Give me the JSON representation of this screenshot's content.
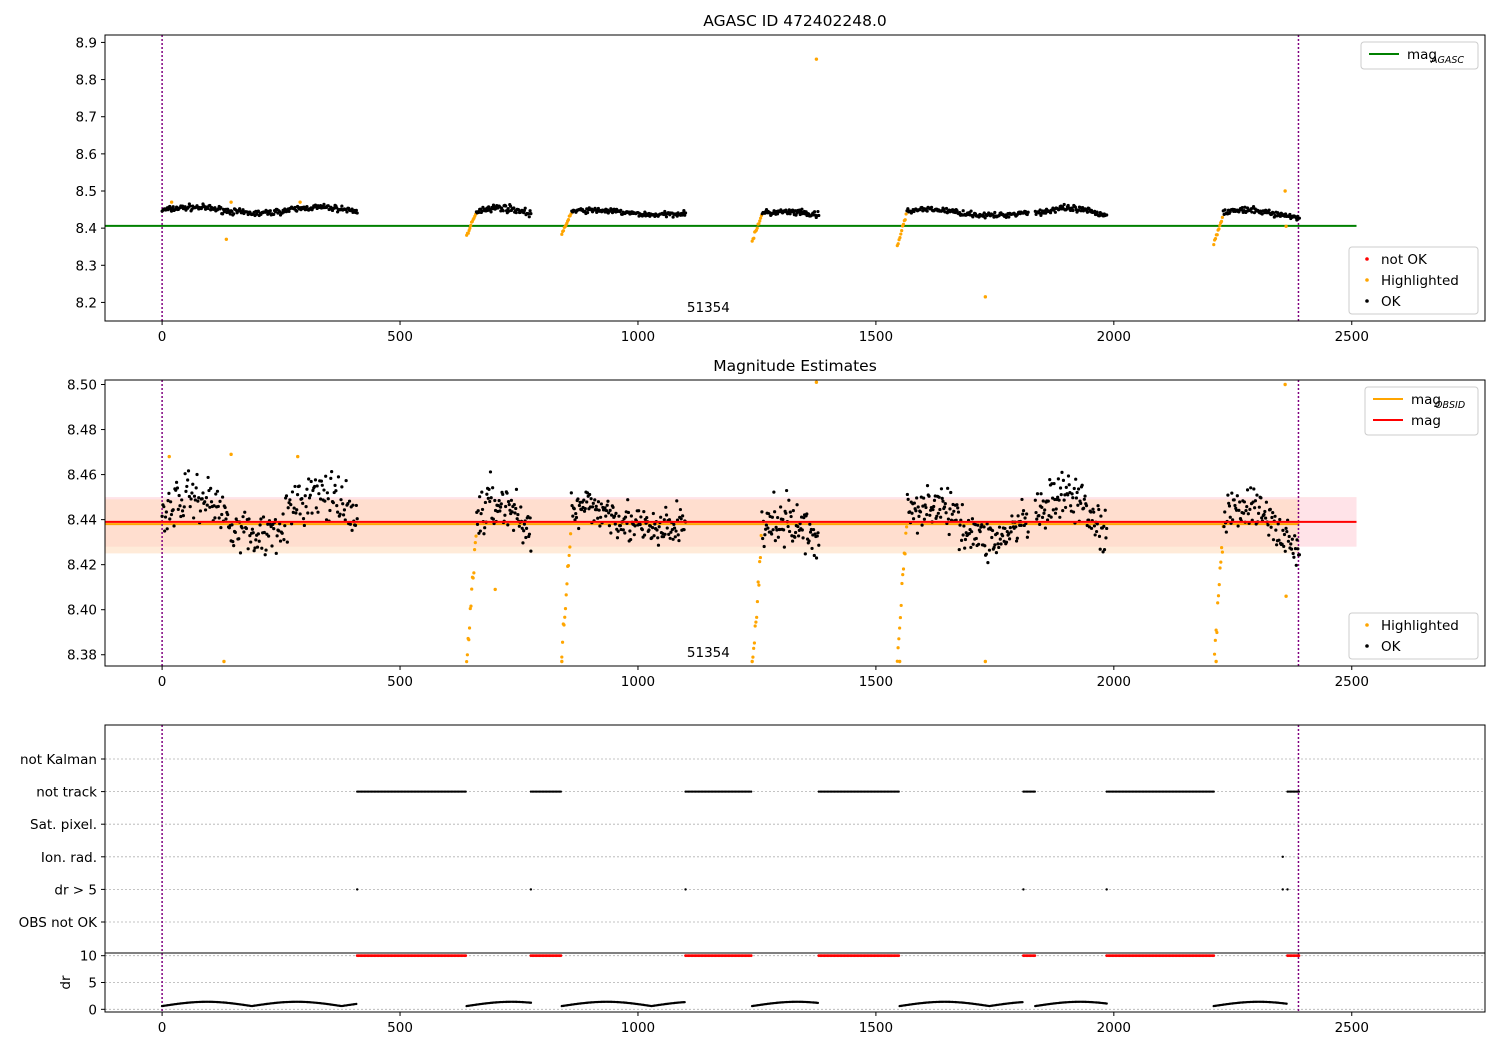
{
  "colors": {
    "ok": "#000000",
    "highlighted": "#ffa500",
    "not_ok": "#ff0000",
    "agasc_line": "#008000",
    "obsid_line": "#ffa500",
    "mag_line": "#ff0000",
    "band_mag": "#ffc0cb",
    "band_obsid": "#ffdab9",
    "boundary": "#800080",
    "grid": "#b0b0b0"
  },
  "chart_data": [
    {
      "id": "agasc",
      "type": "scatter",
      "title": "AGASC ID 472402248.0",
      "annotation": "51354",
      "annotation_x": 1190,
      "xlim": [
        -120,
        2780
      ],
      "ylim": [
        8.15,
        8.92
      ],
      "xticks": [
        0,
        500,
        1000,
        1500,
        2000,
        2500
      ],
      "xtick_labels": [
        "0",
        "500",
        "1000",
        "1500",
        "2000",
        "2500"
      ],
      "yticks": [
        8.2,
        8.3,
        8.4,
        8.5,
        8.6,
        8.7,
        8.8,
        8.9
      ],
      "ytick_labels": [
        "8.2",
        "8.3",
        "8.4",
        "8.5",
        "8.6",
        "8.7",
        "8.8",
        "8.9"
      ],
      "boundaries": [
        0,
        2388
      ],
      "mag_agasc": 8.406,
      "legend_top": [
        {
          "label": "mag",
          "sub": "AGASC",
          "kind": "line",
          "color_key": "agasc_line"
        }
      ],
      "legend_bottom": [
        {
          "label": "not OK",
          "kind": "dot",
          "color_key": "not_ok"
        },
        {
          "label": "Highlighted",
          "kind": "dot",
          "color_key": "highlighted"
        },
        {
          "label": "OK",
          "kind": "dot",
          "color_key": "ok"
        }
      ],
      "segments": [
        {
          "x0": 0,
          "x1": 410,
          "base": 8.448,
          "wave": 0.008,
          "noise": 0.007,
          "n": 230
        },
        {
          "x0": 640,
          "x1": 775,
          "base": 8.44,
          "wave": 0.015,
          "noise": 0.008,
          "n": 80,
          "dip": 0.06
        },
        {
          "x0": 840,
          "x1": 1100,
          "base": 8.442,
          "wave": 0.006,
          "noise": 0.006,
          "n": 150,
          "dip": 0.06
        },
        {
          "x0": 1240,
          "x1": 1380,
          "base": 8.435,
          "wave": 0.008,
          "noise": 0.008,
          "n": 80,
          "dip": 0.07
        },
        {
          "x0": 1545,
          "x1": 1820,
          "base": 8.442,
          "wave": 0.008,
          "noise": 0.006,
          "n": 150,
          "dip": 0.09
        },
        {
          "x0": 1835,
          "x1": 1985,
          "base": 8.44,
          "wave": 0.012,
          "noise": 0.008,
          "n": 90
        },
        {
          "x0": 2210,
          "x1": 2390,
          "base": 8.438,
          "wave": 0.01,
          "noise": 0.007,
          "n": 100,
          "dip": 0.08
        }
      ],
      "outliers": [
        {
          "x": 135,
          "y": 8.37
        },
        {
          "x": 145,
          "y": 8.47
        },
        {
          "x": 290,
          "y": 8.47
        },
        {
          "x": 20,
          "y": 8.47
        },
        {
          "x": 1375,
          "y": 8.855
        },
        {
          "x": 1730,
          "y": 8.215
        },
        {
          "x": 2360,
          "y": 8.5
        },
        {
          "x": 2362,
          "y": 8.405
        }
      ]
    },
    {
      "id": "mag_estimates",
      "type": "scatter",
      "title": "Magnitude Estimates",
      "annotation": "51354",
      "annotation_x": 1190,
      "xlim": [
        -120,
        2780
      ],
      "ylim": [
        8.375,
        8.502
      ],
      "xticks": [
        0,
        500,
        1000,
        1500,
        2000,
        2500
      ],
      "xtick_labels": [
        "0",
        "500",
        "1000",
        "1500",
        "2000",
        "2500"
      ],
      "yticks": [
        8.38,
        8.4,
        8.42,
        8.44,
        8.46,
        8.48,
        8.5
      ],
      "ytick_labels": [
        "8.38",
        "8.40",
        "8.42",
        "8.44",
        "8.46",
        "8.48",
        "8.50"
      ],
      "boundaries": [
        0,
        2388
      ],
      "mag": 8.439,
      "mag_obsid": 8.438,
      "band_mag": [
        8.428,
        8.45
      ],
      "band_obsid": [
        8.425,
        8.449
      ],
      "band_x": [
        -120,
        2510
      ],
      "legend_top": [
        {
          "label": "mag",
          "sub": "OBSID",
          "kind": "line",
          "color_key": "obsid_line"
        },
        {
          "label": "mag",
          "sub": "",
          "kind": "line",
          "color_key": "mag_line"
        }
      ],
      "legend_bottom": [
        {
          "label": "Highlighted",
          "kind": "dot",
          "color_key": "highlighted"
        },
        {
          "label": "OK",
          "kind": "dot",
          "color_key": "ok"
        }
      ],
      "segments": [
        {
          "x0": 0,
          "x1": 410,
          "base": 8.442,
          "wave": 0.009,
          "noise": 0.009,
          "n": 230
        },
        {
          "x0": 640,
          "x1": 775,
          "base": 8.435,
          "wave": 0.012,
          "noise": 0.01,
          "n": 90,
          "dip": 0.06
        },
        {
          "x0": 840,
          "x1": 1100,
          "base": 8.44,
          "wave": 0.005,
          "noise": 0.008,
          "n": 170,
          "dip": 0.06
        },
        {
          "x0": 1240,
          "x1": 1380,
          "base": 8.432,
          "wave": 0.007,
          "noise": 0.009,
          "n": 90,
          "dip": 0.06
        },
        {
          "x0": 1545,
          "x1": 1820,
          "base": 8.439,
          "wave": 0.008,
          "noise": 0.008,
          "n": 170,
          "dip": 0.06
        },
        {
          "x0": 1835,
          "x1": 1985,
          "base": 8.438,
          "wave": 0.012,
          "noise": 0.009,
          "n": 100
        },
        {
          "x0": 2210,
          "x1": 2390,
          "base": 8.436,
          "wave": 0.01,
          "noise": 0.008,
          "n": 110,
          "dip": 0.06
        }
      ],
      "outliers": [
        {
          "x": 15,
          "y": 8.468
        },
        {
          "x": 145,
          "y": 8.469
        },
        {
          "x": 285,
          "y": 8.468
        },
        {
          "x": 130,
          "y": 8.377
        },
        {
          "x": 1375,
          "y": 8.501
        },
        {
          "x": 1730,
          "y": 8.377
        },
        {
          "x": 2360,
          "y": 8.5
        },
        {
          "x": 2362,
          "y": 8.406
        },
        {
          "x": 700,
          "y": 8.409
        },
        {
          "x": 840,
          "y": 8.377
        },
        {
          "x": 1240,
          "y": 8.377
        },
        {
          "x": 1550,
          "y": 8.377
        },
        {
          "x": 2215,
          "y": 8.377
        }
      ]
    },
    {
      "id": "flags",
      "type": "scatter",
      "xlim": [
        -120,
        2780
      ],
      "boundaries": [
        0,
        2388
      ],
      "categories": [
        "not Kalman",
        "not track",
        "Sat. pixel.",
        "Ion. rad.",
        "dr > 5",
        "OBS not OK"
      ],
      "not_track_ranges": [
        [
          410,
          640
        ],
        [
          775,
          840
        ],
        [
          1100,
          1240
        ],
        [
          1380,
          1550
        ],
        [
          1810,
          1835
        ],
        [
          1985,
          2210
        ],
        [
          2365,
          2390
        ]
      ],
      "ion_rad_points": [
        2355
      ],
      "dr5_points": [
        410,
        775,
        1100,
        1810,
        1985,
        2355,
        2365
      ]
    },
    {
      "id": "dr",
      "type": "scatter",
      "ylabel": "dr",
      "xlim": [
        -120,
        2780
      ],
      "ylim": [
        -0.5,
        10.5
      ],
      "xticks": [
        0,
        500,
        1000,
        1500,
        2000,
        2500
      ],
      "xtick_labels": [
        "0",
        "500",
        "1000",
        "1500",
        "2000",
        "2500"
      ],
      "yticks": [
        0,
        5,
        10
      ],
      "ytick_labels": [
        "0",
        "5",
        "10"
      ],
      "boundaries": [
        0,
        2388
      ],
      "capped_ranges": [
        [
          410,
          640
        ],
        [
          775,
          840
        ],
        [
          1100,
          1240
        ],
        [
          1380,
          1550
        ],
        [
          1810,
          1835
        ],
        [
          1985,
          2210
        ],
        [
          2365,
          2390
        ]
      ],
      "capped_value": 10,
      "ok_segments": [
        [
          0,
          410
        ],
        [
          640,
          775
        ],
        [
          840,
          1100
        ],
        [
          1240,
          1380
        ],
        [
          1550,
          1810
        ],
        [
          1835,
          1985
        ],
        [
          2210,
          2365
        ]
      ]
    }
  ]
}
